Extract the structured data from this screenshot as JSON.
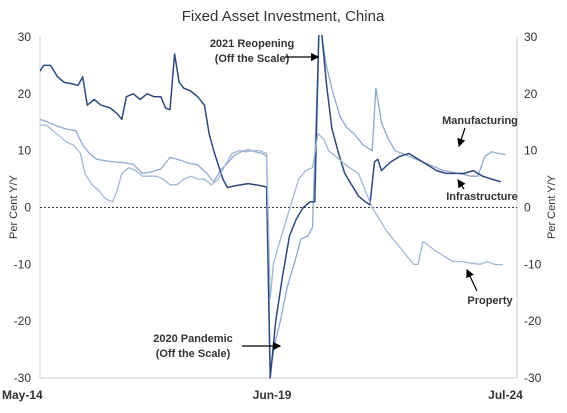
{
  "chart_data": {
    "type": "line",
    "title": "Fixed Asset Investment, China",
    "ylabel_left": "Per Cent Y/Y",
    "ylabel_right": "Per Cent Y/Y",
    "ylim": [
      -30,
      30
    ],
    "y_ticks": [
      "30",
      "20",
      "10",
      "0",
      "-10",
      "-20",
      "-30"
    ],
    "x_range": [
      2014.37,
      2024.75
    ],
    "x_ticks": [
      {
        "x": 2014.37,
        "label": "May-14"
      },
      {
        "x": 2019.42,
        "label": "Jun-19"
      },
      {
        "x": 2024.5,
        "label": "Jul-24"
      }
    ],
    "grid": false,
    "zero_line": "dashed",
    "series": [
      {
        "name": "Manufacturing",
        "color": "#8fa9cc",
        "points": [
          [
            2014.37,
            15.5
          ],
          [
            2014.55,
            15
          ],
          [
            2014.75,
            14.3
          ],
          [
            2014.95,
            13.8
          ],
          [
            2015.15,
            13.5
          ],
          [
            2015.3,
            11
          ],
          [
            2015.45,
            9.5
          ],
          [
            2015.6,
            8.5
          ],
          [
            2015.8,
            8.2
          ],
          [
            2016.0,
            8.0
          ],
          [
            2016.2,
            7.9
          ],
          [
            2016.4,
            7.6
          ],
          [
            2016.6,
            6.0
          ],
          [
            2016.8,
            6.3
          ],
          [
            2017.0,
            6.8
          ],
          [
            2017.2,
            8.8
          ],
          [
            2017.4,
            8.4
          ],
          [
            2017.6,
            7.8
          ],
          [
            2017.8,
            7.5
          ],
          [
            2018.0,
            6.0
          ],
          [
            2018.15,
            4.5
          ],
          [
            2018.3,
            6.6
          ],
          [
            2018.45,
            7.8
          ],
          [
            2018.6,
            9.2
          ],
          [
            2018.75,
            9.8
          ],
          [
            2018.9,
            10.2
          ],
          [
            2019.05,
            9.8
          ],
          [
            2019.2,
            9.5
          ],
          [
            2019.3,
            9.0
          ],
          [
            2019.38,
            -29
          ],
          [
            2019.48,
            -24
          ],
          [
            2019.6,
            -20
          ],
          [
            2019.75,
            -14
          ],
          [
            2019.9,
            -10
          ],
          [
            2020.05,
            -5.5
          ],
          [
            2020.2,
            -5
          ],
          [
            2020.3,
            -3.5
          ],
          [
            2020.45,
            33
          ],
          [
            2020.6,
            25
          ],
          [
            2020.75,
            20
          ],
          [
            2020.9,
            16
          ],
          [
            2021.05,
            14
          ],
          [
            2021.2,
            13
          ],
          [
            2021.3,
            12
          ],
          [
            2021.4,
            11
          ],
          [
            2021.5,
            10.5
          ],
          [
            2021.6,
            10
          ],
          [
            2021.68,
            21
          ],
          [
            2021.8,
            15
          ],
          [
            2021.95,
            12
          ],
          [
            2022.1,
            10
          ],
          [
            2022.25,
            9.5
          ],
          [
            2022.4,
            9.0
          ],
          [
            2022.55,
            8.5
          ],
          [
            2022.7,
            8.0
          ],
          [
            2022.85,
            7.5
          ],
          [
            2023.0,
            7.0
          ],
          [
            2023.15,
            6.5
          ],
          [
            2023.3,
            6.3
          ],
          [
            2023.45,
            6.0
          ],
          [
            2023.6,
            5.8
          ],
          [
            2023.75,
            5.5
          ],
          [
            2023.9,
            5.5
          ],
          [
            2024.05,
            9.0
          ],
          [
            2024.2,
            9.8
          ],
          [
            2024.35,
            9.5
          ],
          [
            2024.5,
            9.3
          ]
        ]
      },
      {
        "name": "Infrastructure",
        "color": "#2e4a7d",
        "points": [
          [
            2014.37,
            24
          ],
          [
            2014.45,
            25
          ],
          [
            2014.6,
            25
          ],
          [
            2014.75,
            23
          ],
          [
            2014.9,
            22
          ],
          [
            2015.05,
            21.8
          ],
          [
            2015.2,
            21.5
          ],
          [
            2015.3,
            23
          ],
          [
            2015.4,
            18
          ],
          [
            2015.55,
            19
          ],
          [
            2015.7,
            18
          ],
          [
            2015.9,
            17.5
          ],
          [
            2016.05,
            16.5
          ],
          [
            2016.15,
            15.5
          ],
          [
            2016.25,
            19.5
          ],
          [
            2016.4,
            20
          ],
          [
            2016.55,
            19
          ],
          [
            2016.7,
            20
          ],
          [
            2016.85,
            19.5
          ],
          [
            2017.0,
            19.5
          ],
          [
            2017.1,
            17.5
          ],
          [
            2017.2,
            17.2
          ],
          [
            2017.3,
            27
          ],
          [
            2017.4,
            22
          ],
          [
            2017.5,
            21
          ],
          [
            2017.65,
            20.5
          ],
          [
            2017.8,
            19.5
          ],
          [
            2017.95,
            18
          ],
          [
            2018.05,
            13
          ],
          [
            2018.15,
            10
          ],
          [
            2018.25,
            7.5
          ],
          [
            2018.35,
            5
          ],
          [
            2018.45,
            3.5
          ],
          [
            2018.6,
            3.8
          ],
          [
            2018.75,
            4
          ],
          [
            2018.9,
            4.2
          ],
          [
            2019.05,
            4
          ],
          [
            2019.2,
            3.8
          ],
          [
            2019.3,
            3.6
          ],
          [
            2019.38,
            -30
          ],
          [
            2019.5,
            -20
          ],
          [
            2019.65,
            -12
          ],
          [
            2019.8,
            -5
          ],
          [
            2019.95,
            -2
          ],
          [
            2020.1,
            0
          ],
          [
            2020.25,
            1
          ],
          [
            2020.35,
            1
          ],
          [
            2020.45,
            35
          ],
          [
            2020.6,
            22
          ],
          [
            2020.72,
            14
          ],
          [
            2020.85,
            10
          ],
          [
            2021.0,
            6
          ],
          [
            2021.15,
            4
          ],
          [
            2021.3,
            2
          ],
          [
            2021.45,
            1
          ],
          [
            2021.55,
            0.5
          ],
          [
            2021.65,
            8
          ],
          [
            2021.72,
            8.5
          ],
          [
            2021.8,
            6.5
          ],
          [
            2022.0,
            8
          ],
          [
            2022.2,
            9
          ],
          [
            2022.4,
            9.5
          ],
          [
            2022.6,
            8.5
          ],
          [
            2022.8,
            7.5
          ],
          [
            2023.0,
            6.5
          ],
          [
            2023.2,
            6
          ],
          [
            2023.4,
            6
          ],
          [
            2023.6,
            6
          ],
          [
            2023.8,
            6.5
          ],
          [
            2024.0,
            5.5
          ],
          [
            2024.2,
            5
          ],
          [
            2024.4,
            4.5
          ]
        ]
      },
      {
        "name": "Property",
        "color": "#a3b7d3",
        "points": [
          [
            2014.37,
            14.5
          ],
          [
            2014.5,
            14.5
          ],
          [
            2014.65,
            13.5
          ],
          [
            2014.8,
            12.5
          ],
          [
            2014.95,
            11.5
          ],
          [
            2015.1,
            11
          ],
          [
            2015.25,
            9.5
          ],
          [
            2015.35,
            6
          ],
          [
            2015.5,
            4
          ],
          [
            2015.65,
            3
          ],
          [
            2015.8,
            1.5
          ],
          [
            2015.95,
            1
          ],
          [
            2016.05,
            3
          ],
          [
            2016.15,
            6
          ],
          [
            2016.3,
            7
          ],
          [
            2016.45,
            6.5
          ],
          [
            2016.6,
            5.5
          ],
          [
            2016.75,
            5.5
          ],
          [
            2016.9,
            5.5
          ],
          [
            2017.05,
            5
          ],
          [
            2017.2,
            4
          ],
          [
            2017.35,
            4
          ],
          [
            2017.5,
            5
          ],
          [
            2017.65,
            5.5
          ],
          [
            2017.8,
            5
          ],
          [
            2017.95,
            5
          ],
          [
            2018.1,
            4
          ],
          [
            2018.25,
            5
          ],
          [
            2018.4,
            7.5
          ],
          [
            2018.55,
            9.5
          ],
          [
            2018.7,
            10
          ],
          [
            2018.85,
            9.8
          ],
          [
            2019.0,
            10
          ],
          [
            2019.15,
            10
          ],
          [
            2019.3,
            9.5
          ],
          [
            2019.38,
            -16
          ],
          [
            2019.45,
            -10
          ],
          [
            2019.55,
            -7
          ],
          [
            2019.7,
            -3
          ],
          [
            2019.85,
            1
          ],
          [
            2020.0,
            5
          ],
          [
            2020.15,
            6.5
          ],
          [
            2020.3,
            7
          ],
          [
            2020.42,
            13
          ],
          [
            2020.55,
            12
          ],
          [
            2020.65,
            10
          ],
          [
            2020.8,
            9
          ],
          [
            2020.95,
            8
          ],
          [
            2021.1,
            7
          ],
          [
            2021.3,
            6
          ],
          [
            2021.45,
            3
          ],
          [
            2021.6,
            0
          ],
          [
            2021.75,
            -2
          ],
          [
            2021.9,
            -4
          ],
          [
            2022.1,
            -6
          ],
          [
            2022.3,
            -8
          ],
          [
            2022.5,
            -10
          ],
          [
            2022.6,
            -10
          ],
          [
            2022.7,
            -6
          ],
          [
            2022.8,
            -6.5
          ],
          [
            2022.95,
            -7.5
          ],
          [
            2023.15,
            -8.5
          ],
          [
            2023.35,
            -9.5
          ],
          [
            2023.55,
            -9.5
          ],
          [
            2023.75,
            -9.8
          ],
          [
            2023.95,
            -10
          ],
          [
            2024.1,
            -9.5
          ],
          [
            2024.25,
            -10
          ],
          [
            2024.45,
            -10.1
          ]
        ]
      }
    ],
    "annotations": {
      "reopening_line1": "2021 Reopening",
      "reopening_line2": "(Off the Scale)",
      "pandemic_line1": "2020 Pandemic",
      "pandemic_line2": "(Off the Scale)",
      "label_manufacturing": "Manufacturing",
      "label_infrastructure": "Infrastructure",
      "label_property": "Property"
    }
  }
}
